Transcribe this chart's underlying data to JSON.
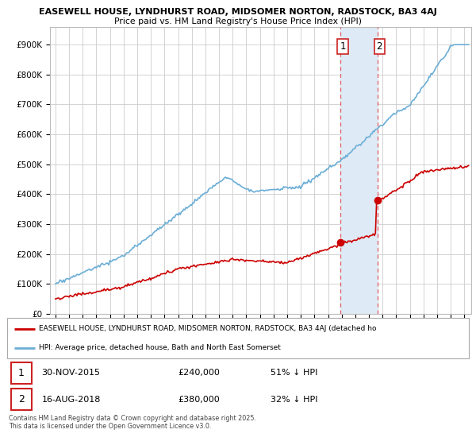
{
  "title1": "EASEWELL HOUSE, LYNDHURST ROAD, MIDSOMER NORTON, RADSTOCK, BA3 4AJ",
  "title2": "Price paid vs. HM Land Registry's House Price Index (HPI)",
  "ylabel_ticks": [
    "£0",
    "£100K",
    "£200K",
    "£300K",
    "£400K",
    "£500K",
    "£600K",
    "£700K",
    "£800K",
    "£900K"
  ],
  "ytick_vals": [
    0,
    100000,
    200000,
    300000,
    400000,
    500000,
    600000,
    700000,
    800000,
    900000
  ],
  "ylim": [
    0,
    960000
  ],
  "xlim_start": 1994.6,
  "xlim_end": 2025.5,
  "xticks": [
    1995,
    1996,
    1997,
    1998,
    1999,
    2000,
    2001,
    2002,
    2003,
    2004,
    2005,
    2006,
    2007,
    2008,
    2009,
    2010,
    2011,
    2012,
    2013,
    2014,
    2015,
    2016,
    2017,
    2018,
    2019,
    2020,
    2021,
    2022,
    2023,
    2024,
    2025
  ],
  "hpi_color": "#6baed6",
  "price_color": "#cc0000",
  "vline1_x": 2015.92,
  "vline2_x": 2018.62,
  "vline_color": "#e06060",
  "shade_color": "#deeaf5",
  "marker1_x": 2015.92,
  "marker1_y": 240000,
  "marker2_x": 2018.62,
  "marker2_y": 380000,
  "sale1": {
    "date": "30-NOV-2015",
    "price": "£240,000",
    "pct": "51% ↓ HPI"
  },
  "sale2": {
    "date": "16-AUG-2018",
    "price": "£380,000",
    "pct": "32% ↓ HPI"
  },
  "legend1": "EASEWELL HOUSE, LYNDHURST ROAD, MIDSOMER NORTON, RADSTOCK, BA3 4AJ (detached ho",
  "legend2": "HPI: Average price, detached house, Bath and North East Somerset",
  "footnote": "Contains HM Land Registry data © Crown copyright and database right 2025.\nThis data is licensed under the Open Government Licence v3.0.",
  "background_color": "#ffffff",
  "grid_color": "#cccccc"
}
